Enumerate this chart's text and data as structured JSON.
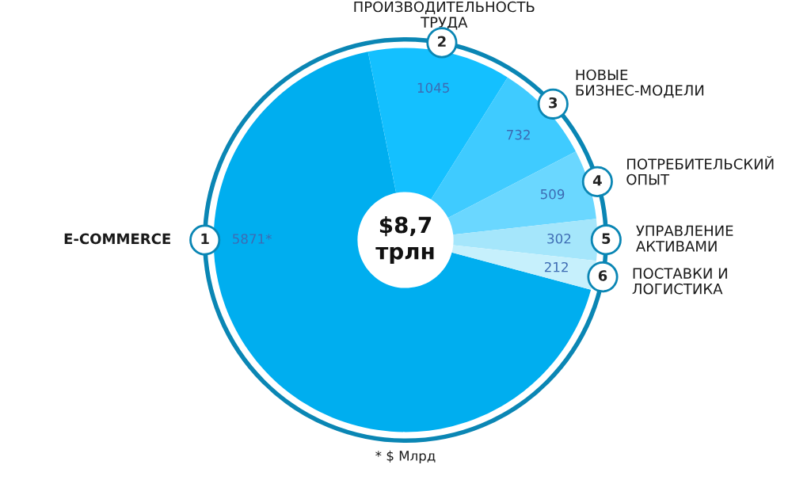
{
  "chart_data": {
    "type": "donut",
    "categories": [
      "E-COMMERCE",
      "ПРОИЗВОДИТЕЛЬНОСТЬ\nТРУДА",
      "НОВЫЕ\nБИЗНЕС-МОДЕЛИ",
      "ПОТРЕБИТЕЛЬСКИЙ\nОПЫТ",
      "УПРАВЛЕНИЕ\nАКТИВАМИ",
      "ПОСТАВКИ И\nЛОГИСТИКА"
    ],
    "values": [
      5871,
      1045,
      732,
      509,
      302,
      212
    ],
    "colors": [
      "#00aeef",
      "#14c0ff",
      "#3fcbff",
      "#6ad7ff",
      "#a5e6fb",
      "#c6f0fc"
    ],
    "value_labels": [
      "5871*",
      "1045",
      "732",
      "509",
      "302",
      "212"
    ],
    "annotations": [
      "$8,7\nтрлн",
      "* $ Млрд",
      "1",
      "2",
      "3",
      "4",
      "5",
      "6"
    ]
  }
}
